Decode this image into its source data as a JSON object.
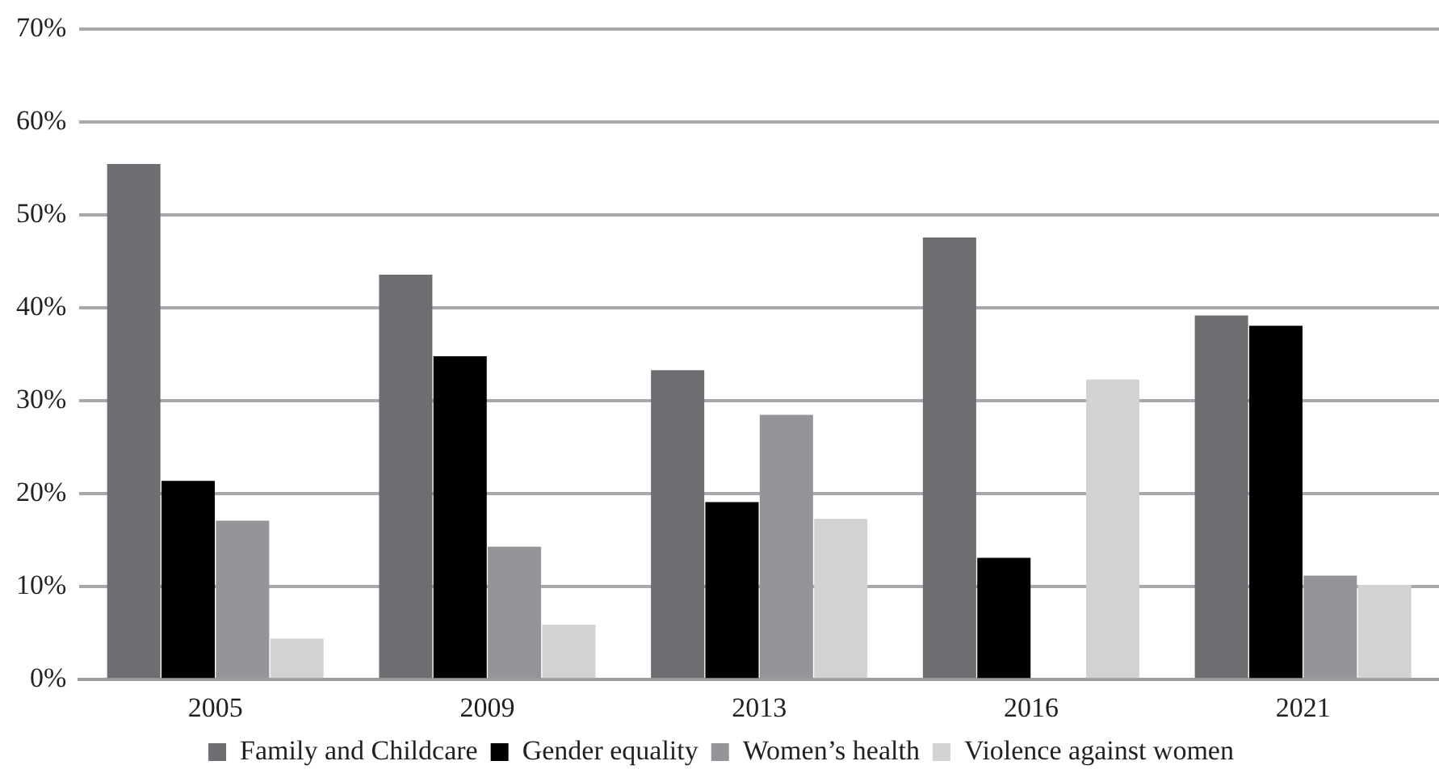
{
  "chart_data": {
    "type": "bar",
    "categories": [
      "2005",
      "2009",
      "2013",
      "2016",
      "2021"
    ],
    "series": [
      {
        "name": "Family and Childcare",
        "color": "#6d6e71",
        "values": [
          55.5,
          43.6,
          33.3,
          47.6,
          39.2
        ]
      },
      {
        "name": "Gender equality",
        "color": "#000000",
        "values": [
          21.4,
          34.8,
          19.1,
          13.1,
          38.1
        ]
      },
      {
        "name": "Women’s health",
        "color": "#939598",
        "values": [
          17.1,
          14.3,
          28.5,
          null,
          11.2
        ]
      },
      {
        "name": "Violence against women",
        "color": "#d1d2d4",
        "values": [
          4.4,
          5.9,
          17.3,
          32.3,
          10.2
        ]
      }
    ],
    "ylim": [
      0,
      70
    ],
    "yticks": [
      {
        "value": 0,
        "label": "0%"
      },
      {
        "value": 10,
        "label": "10%"
      },
      {
        "value": 20,
        "label": "20%"
      },
      {
        "value": 30,
        "label": "30%"
      },
      {
        "value": 40,
        "label": "40%"
      },
      {
        "value": 50,
        "label": "50%"
      },
      {
        "value": 60,
        "label": "60%"
      },
      {
        "value": 70,
        "label": "70%"
      }
    ],
    "grid": "y",
    "legend": "bottom"
  }
}
